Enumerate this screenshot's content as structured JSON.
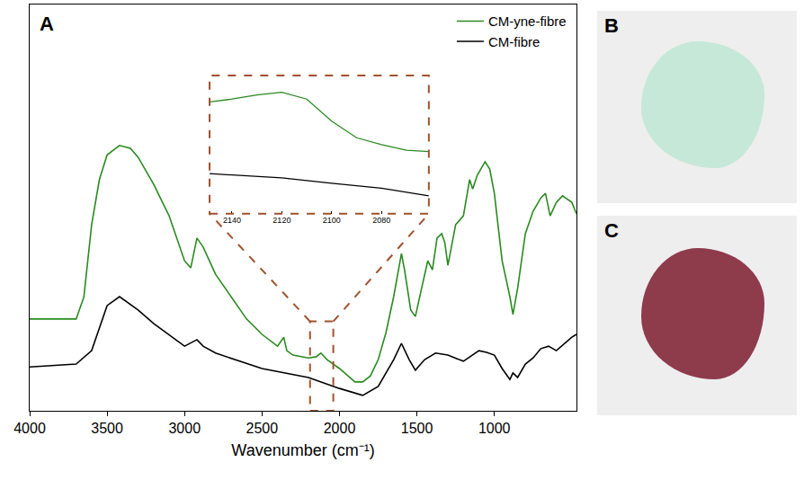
{
  "chart_data": {
    "type": "line",
    "panel": "A",
    "x_label": "Wavenumber (cm⁻¹)",
    "xlim": [
      4000,
      470
    ],
    "xticks": [
      4000,
      3500,
      3000,
      2500,
      2000,
      1500,
      1000
    ],
    "ylim": [
      0,
      100
    ],
    "tick_labels": "x",
    "grid": false,
    "legend": "top-right",
    "series": [
      {
        "name": "CM-yne-fibre",
        "color": "#2a8a1f",
        "x": [
          4000,
          3700,
          3650,
          3600,
          3550,
          3500,
          3420,
          3350,
          3300,
          3200,
          3100,
          3000,
          2960,
          2920,
          2880,
          2800,
          2700,
          2600,
          2500,
          2400,
          2360,
          2340,
          2300,
          2200,
          2150,
          2120,
          2080,
          2000,
          1900,
          1850,
          1800,
          1750,
          1700,
          1650,
          1600,
          1580,
          1540,
          1510,
          1470,
          1430,
          1400,
          1370,
          1340,
          1320,
          1300,
          1250,
          1200,
          1160,
          1140,
          1110,
          1060,
          1030,
          1000,
          950,
          900,
          880,
          850,
          800,
          750,
          700,
          670,
          640,
          600,
          560,
          500,
          470
        ],
        "values": [
          22.6,
          22.6,
          28,
          45.8,
          56.9,
          63,
          65.3,
          64.6,
          62.4,
          55.8,
          48,
          36.9,
          35.2,
          42.5,
          40.3,
          33.6,
          28.1,
          22.6,
          18.8,
          15.9,
          18.1,
          14.8,
          13.7,
          13,
          13.3,
          14.2,
          12.6,
          10.4,
          7.1,
          7.1,
          8.6,
          12.6,
          19.2,
          28.1,
          38.7,
          34.7,
          24.8,
          23.2,
          30.1,
          36.9,
          34.7,
          42.5,
          43.6,
          41.4,
          35.8,
          45.8,
          48,
          56.9,
          54.6,
          58,
          61.3,
          59.5,
          53.5,
          36.9,
          28.1,
          23.7,
          30.1,
          43.6,
          49.1,
          52.4,
          53.5,
          48,
          51.3,
          52.9,
          51.3,
          48.5
        ]
      },
      {
        "name": "CM-fibre",
        "color": "#000000",
        "x": [
          4000,
          3700,
          3600,
          3500,
          3420,
          3300,
          3200,
          3000,
          2920,
          2880,
          2800,
          2500,
          2200,
          2000,
          1850,
          1750,
          1650,
          1600,
          1550,
          1510,
          1450,
          1380,
          1300,
          1200,
          1100,
          1050,
          1000,
          950,
          900,
          880,
          850,
          800,
          750,
          700,
          650,
          600,
          500,
          470
        ],
        "values": [
          10.8,
          11.5,
          14.8,
          25.9,
          28.1,
          24.8,
          21.5,
          15.9,
          17.5,
          15.9,
          14.2,
          10.4,
          8.2,
          5.5,
          3.8,
          6,
          12.6,
          16.6,
          12.6,
          10,
          12.6,
          14.2,
          13.7,
          12.2,
          14.8,
          14.4,
          13.7,
          10.4,
          7.7,
          9.3,
          8.2,
          11.5,
          13,
          15.3,
          15.9,
          14.8,
          18.1,
          18.8
        ]
      }
    ],
    "highlight": {
      "x": [
        2190,
        2040
      ],
      "y": [
        0,
        22
      ]
    },
    "inset": {
      "xlim": [
        2149,
        2061
      ],
      "xticks": [
        2140,
        2120,
        2100,
        2080
      ],
      "ylim": [
        0,
        100
      ],
      "series": [
        {
          "name": "CM-yne-fibre",
          "color": "#2a8a1f",
          "x": [
            2149,
            2140,
            2130,
            2120,
            2110,
            2100,
            2090,
            2080,
            2070,
            2061
          ],
          "values": [
            81,
            83,
            86,
            88,
            83,
            67,
            55,
            50,
            46,
            45
          ]
        },
        {
          "name": "CM-fibre",
          "color": "#000000",
          "x": [
            2149,
            2120,
            2100,
            2080,
            2061
          ],
          "values": [
            29,
            26,
            22,
            18.5,
            13
          ]
        }
      ]
    }
  },
  "photos": [
    {
      "panel": "B",
      "color": "#c6e8d8"
    },
    {
      "panel": "C",
      "color": "#8e3b4c"
    }
  ]
}
